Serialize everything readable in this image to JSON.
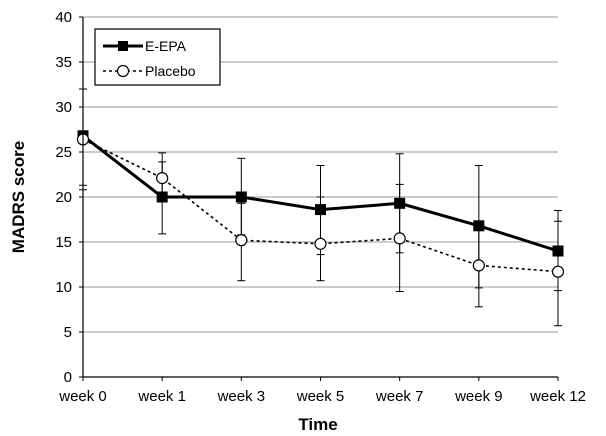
{
  "chart_data": {
    "type": "line",
    "xlabel": "Time",
    "ylabel": "MADRS score",
    "categories": [
      "week 0",
      "week 1",
      "week 3",
      "week 5",
      "week 7",
      "week 9",
      "week 12"
    ],
    "ylim": [
      0,
      40
    ],
    "yticks": [
      0,
      5,
      10,
      15,
      20,
      25,
      30,
      35,
      40
    ],
    "grid": true,
    "legend_position": "top-left",
    "series": [
      {
        "name": "E-EPA",
        "style": "solid",
        "marker": "filled-square",
        "color": "#000000",
        "values": [
          26.8,
          20.0,
          20.0,
          18.6,
          19.3,
          16.8,
          14.0
        ],
        "error_upper": [
          32.0,
          24.9,
          24.3,
          23.5,
          24.8,
          23.5,
          18.5
        ],
        "error_lower": [
          21.3,
          15.9,
          15.8,
          13.6,
          13.8,
          9.9,
          9.6
        ]
      },
      {
        "name": "Placebo",
        "style": "dashed",
        "marker": "open-circle",
        "color": "#000000",
        "values": [
          26.4,
          22.1,
          15.2,
          14.8,
          15.4,
          12.4,
          11.7
        ],
        "error_upper": [
          32.0,
          23.9,
          19.3,
          20.0,
          21.4,
          17.0,
          17.3
        ],
        "error_lower": [
          20.8,
          19.9,
          10.7,
          10.7,
          9.5,
          7.8,
          5.7
        ]
      }
    ]
  }
}
